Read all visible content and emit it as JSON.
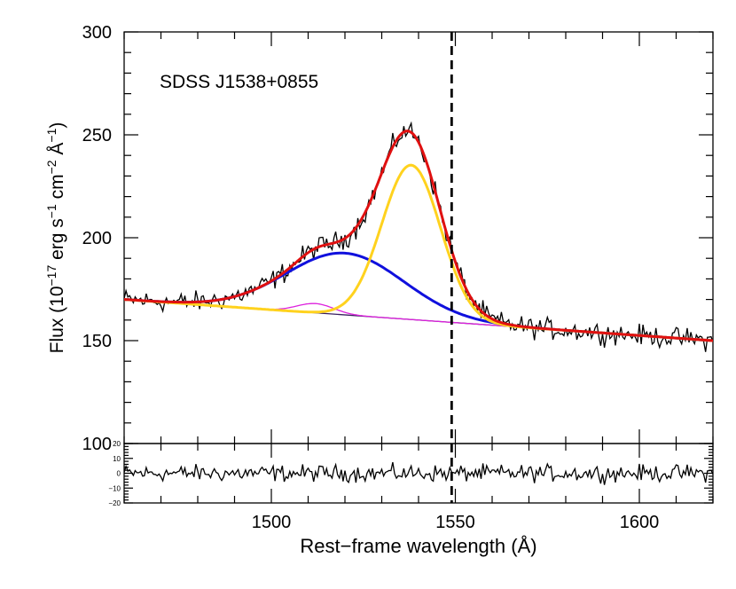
{
  "chart_data": {
    "type": "line",
    "title": "SDSS J1538+0855",
    "xlabel": "Rest−frame wavelength (Å)",
    "ylabel": {
      "pre": "Flux (10",
      "exp1": "−17",
      "mid1": " erg s",
      "exp2": "−1",
      "mid2": " cm",
      "exp3": "−2",
      "mid3": " Å",
      "exp4": "−1",
      "post": ")"
    },
    "xlim": [
      1460,
      1620
    ],
    "ylim": [
      100,
      300
    ],
    "resid_ylim": [
      -20,
      20
    ],
    "x_ticks": [
      1500,
      1550,
      1600
    ],
    "x_tick_labels": [
      "1500",
      "1550",
      "1600"
    ],
    "y_ticks": [
      100,
      150,
      200,
      250,
      300
    ],
    "y_tick_labels": [
      "100",
      "150",
      "200",
      "250",
      "300"
    ],
    "resid_ticks": [
      -20,
      -10,
      0,
      10,
      20
    ],
    "resid_tick_labels": [
      "−20",
      "−10",
      "0",
      "10",
      "20"
    ],
    "vline_x": 1549,
    "continuum": {
      "x": [
        1460,
        1620
      ],
      "y": [
        170,
        150
      ]
    },
    "components": [
      {
        "name": "broad",
        "color": "#1010dd",
        "amplitude": 30,
        "center": 1520,
        "sigma": 16
      },
      {
        "name": "narrow",
        "color": "#ffd21e",
        "amplitude": 75,
        "center": 1538,
        "sigma": 8
      },
      {
        "name": "weak",
        "color": "#dd22dd",
        "amplitude": 4.5,
        "center": 1512,
        "sigma": 5
      }
    ],
    "colors": {
      "data": "#000000",
      "total_fit": "#e01010",
      "continuum": "#3a2060",
      "vline": "#000000"
    }
  }
}
